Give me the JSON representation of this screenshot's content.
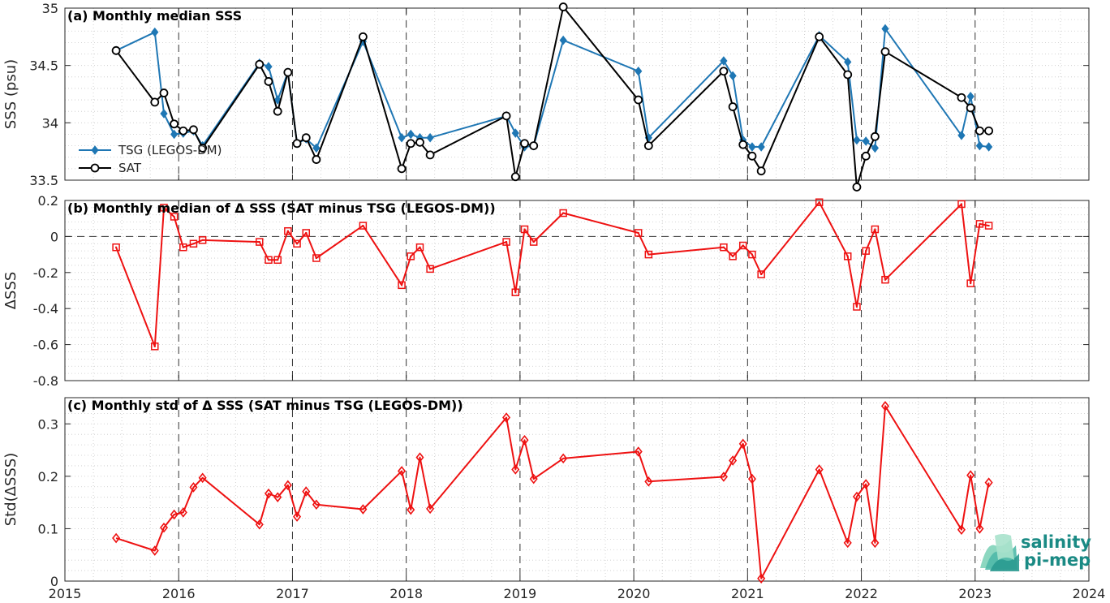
{
  "colors": {
    "tsg": "#1f77b4",
    "sat": "#000000",
    "delta": "#ee1111",
    "grid": "#c8c8c8",
    "axis": "#262626"
  },
  "logo": {
    "line1": "salinity",
    "line2": "pi-mep"
  },
  "x_axis": {
    "min": 2015,
    "max": 2024,
    "ticks": [
      "2015",
      "2016",
      "2017",
      "2018",
      "2019",
      "2020",
      "2021",
      "2022",
      "2023",
      "2024"
    ]
  },
  "chart_data": [
    {
      "type": "line",
      "title": "(a) Monthly median SSS",
      "ylabel": "SSS (psu)",
      "xlim": [
        2015,
        2024
      ],
      "ylim": [
        33.5,
        35
      ],
      "yticks": [
        "33.5",
        "34",
        "34.5",
        "35"
      ],
      "ytick_values": [
        33.5,
        34,
        34.5,
        35
      ],
      "grid": true,
      "legend": "lower-left",
      "series": [
        {
          "name": "TSG (LEGOS-DM)",
          "marker": "diamond",
          "x": [
            2015.45,
            2015.79,
            2015.87,
            2015.96,
            2016.04,
            2016.13,
            2016.21,
            2016.71,
            2016.79,
            2016.87,
            2016.96,
            2017.04,
            2017.12,
            2017.21,
            2017.62,
            2017.96,
            2018.04,
            2018.12,
            2018.21,
            2018.88,
            2018.96,
            2019.04,
            2019.12,
            2019.38,
            2020.04,
            2020.13,
            2020.79,
            2020.87,
            2020.96,
            2021.04,
            2021.12,
            2021.63,
            2021.88,
            2021.96,
            2022.04,
            2022.12,
            2022.21,
            2022.88,
            2022.96,
            2023.04,
            2023.12
          ],
          "y": [
            34.63,
            34.79,
            34.08,
            33.9,
            33.91,
            33.93,
            33.8,
            34.52,
            34.49,
            34.2,
            34.44,
            33.82,
            33.86,
            33.78,
            34.71,
            33.87,
            33.9,
            33.87,
            33.87,
            34.06,
            33.91,
            33.79,
            33.8,
            34.72,
            34.45,
            33.87,
            34.54,
            34.41,
            33.85,
            33.79,
            33.79,
            34.76,
            34.53,
            33.85,
            33.84,
            33.78,
            34.82,
            33.89,
            34.23,
            33.8,
            33.79
          ]
        },
        {
          "name": "SAT",
          "marker": "circle",
          "x": [
            2015.45,
            2015.79,
            2015.87,
            2015.96,
            2016.04,
            2016.13,
            2016.21,
            2016.71,
            2016.79,
            2016.87,
            2016.96,
            2017.04,
            2017.12,
            2017.21,
            2017.62,
            2017.96,
            2018.04,
            2018.12,
            2018.21,
            2018.88,
            2018.96,
            2019.04,
            2019.12,
            2019.38,
            2020.04,
            2020.13,
            2020.79,
            2020.87,
            2020.96,
            2021.04,
            2021.12,
            2021.63,
            2021.88,
            2021.96,
            2022.04,
            2022.12,
            2022.21,
            2022.88,
            2022.96,
            2023.04,
            2023.12
          ],
          "y": [
            34.63,
            34.18,
            34.26,
            33.99,
            33.93,
            33.94,
            33.78,
            34.51,
            34.36,
            34.1,
            34.44,
            33.82,
            33.87,
            33.68,
            34.75,
            33.6,
            33.82,
            33.83,
            33.72,
            34.06,
            33.53,
            33.82,
            33.8,
            35.01,
            34.2,
            33.8,
            34.45,
            34.14,
            33.81,
            33.71,
            33.58,
            34.75,
            34.42,
            33.44,
            33.71,
            33.88,
            34.62,
            34.22,
            34.13,
            33.93,
            33.93
          ]
        }
      ]
    },
    {
      "type": "line",
      "title": "(b) Monthly median of Δ SSS (SAT minus TSG (LEGOS-DM))",
      "ylabel": "ΔSSS",
      "xlim": [
        2015,
        2024
      ],
      "ylim": [
        -0.8,
        0.2
      ],
      "yticks": [
        "-0.8",
        "-0.6",
        "-0.4",
        "-0.2",
        "0",
        "0.2"
      ],
      "ytick_values": [
        -0.8,
        -0.6,
        -0.4,
        -0.2,
        0,
        0.2
      ],
      "grid": true,
      "series": [
        {
          "marker": "square",
          "x": [
            2015.45,
            2015.79,
            2015.87,
            2015.96,
            2016.04,
            2016.13,
            2016.21,
            2016.71,
            2016.79,
            2016.87,
            2016.96,
            2017.04,
            2017.12,
            2017.21,
            2017.62,
            2017.96,
            2018.04,
            2018.12,
            2018.21,
            2018.88,
            2018.96,
            2019.04,
            2019.12,
            2019.38,
            2020.04,
            2020.13,
            2020.79,
            2020.87,
            2020.96,
            2021.04,
            2021.12,
            2021.63,
            2021.88,
            2021.96,
            2022.04,
            2022.12,
            2022.21,
            2022.88,
            2022.96,
            2023.04,
            2023.12
          ],
          "y": [
            -0.06,
            -0.61,
            0.16,
            0.11,
            -0.06,
            -0.04,
            -0.02,
            -0.03,
            -0.13,
            -0.13,
            0.03,
            -0.04,
            0.02,
            -0.12,
            0.06,
            -0.27,
            -0.11,
            -0.06,
            -0.18,
            -0.03,
            -0.31,
            0.04,
            -0.03,
            0.13,
            0.02,
            -0.1,
            -0.06,
            -0.11,
            -0.05,
            -0.1,
            -0.21,
            0.19,
            -0.11,
            -0.39,
            -0.08,
            0.04,
            -0.24,
            0.18,
            -0.26,
            0.07,
            0.06
          ]
        }
      ]
    },
    {
      "type": "line",
      "title": "(c) Monthly std of Δ SSS (SAT minus TSG (LEGOS-DM))",
      "ylabel": "Std(ΔSSS)",
      "xlim": [
        2015,
        2024
      ],
      "ylim": [
        0,
        0.35
      ],
      "yticks": [
        "0",
        "0.1",
        "0.2",
        "0.3"
      ],
      "ytick_values": [
        0,
        0.1,
        0.2,
        0.3
      ],
      "grid": true,
      "series": [
        {
          "marker": "diamond",
          "x": [
            2015.45,
            2015.79,
            2015.87,
            2015.96,
            2016.04,
            2016.13,
            2016.21,
            2016.71,
            2016.79,
            2016.87,
            2016.96,
            2017.04,
            2017.12,
            2017.21,
            2017.62,
            2017.96,
            2018.04,
            2018.12,
            2018.21,
            2018.88,
            2018.96,
            2019.04,
            2019.12,
            2019.38,
            2020.04,
            2020.13,
            2020.79,
            2020.87,
            2020.96,
            2021.04,
            2021.12,
            2021.63,
            2021.88,
            2021.96,
            2022.04,
            2022.12,
            2022.21,
            2022.88,
            2022.96,
            2023.04,
            2023.12
          ],
          "y": [
            0.082,
            0.058,
            0.102,
            0.127,
            0.131,
            0.179,
            0.197,
            0.108,
            0.167,
            0.16,
            0.183,
            0.123,
            0.171,
            0.146,
            0.137,
            0.21,
            0.136,
            0.236,
            0.138,
            0.312,
            0.213,
            0.269,
            0.195,
            0.234,
            0.247,
            0.19,
            0.199,
            0.23,
            0.262,
            0.195,
            0.005,
            0.213,
            0.073,
            0.161,
            0.185,
            0.073,
            0.334,
            0.098,
            0.202,
            0.1,
            0.188
          ]
        }
      ]
    }
  ]
}
